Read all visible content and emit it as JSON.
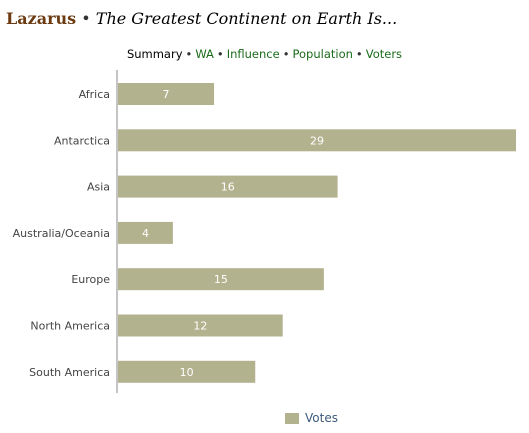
{
  "header": {
    "region": "Lazarus",
    "separator": "•",
    "poll_title": "The Greatest Continent on Earth Is..."
  },
  "tabs": [
    {
      "label": "Summary",
      "active": true
    },
    {
      "label": "WA",
      "active": false
    },
    {
      "label": "Influence",
      "active": false
    },
    {
      "label": "Population",
      "active": false
    },
    {
      "label": "Voters",
      "active": false
    }
  ],
  "colors": {
    "bar": "#b3b28f",
    "axis": "#8a8a8a"
  },
  "chart_data": {
    "type": "bar",
    "orientation": "horizontal",
    "categories": [
      "Africa",
      "Antarctica",
      "Asia",
      "Australia/Oceania",
      "Europe",
      "North America",
      "South America"
    ],
    "series": [
      {
        "name": "Votes",
        "values": [
          7,
          29,
          16,
          4,
          15,
          12,
          10
        ]
      }
    ],
    "xlim": [
      0,
      29
    ],
    "grid": false,
    "legend": "bottom"
  },
  "legend": {
    "label": "Votes"
  }
}
